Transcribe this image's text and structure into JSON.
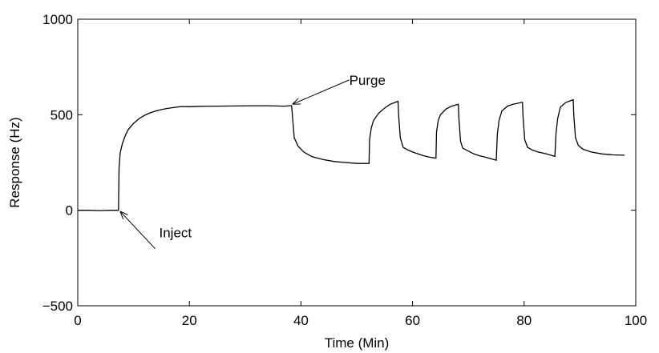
{
  "chart_data": {
    "type": "line",
    "title": "",
    "xlabel": "Time (Min)",
    "ylabel": "Response (Hz)",
    "xlim": [
      0,
      100
    ],
    "ylim": [
      -500,
      1000
    ],
    "xticks": [
      0,
      20,
      40,
      60,
      80,
      100
    ],
    "yticks": [
      -500,
      0,
      500,
      1000
    ],
    "xtick_labels": [
      "0",
      "20",
      "40",
      "60",
      "80",
      "100"
    ],
    "ytick_labels": [
      "−500",
      "0",
      "500",
      "1000"
    ],
    "grid": false,
    "legend": "none",
    "line_color": "#000000",
    "series": [
      {
        "values_x": [
          0,
          2,
          4,
          6,
          7.3,
          7.4,
          7.6,
          8,
          8.5,
          9,
          10,
          11,
          12,
          13,
          14,
          15,
          16,
          17,
          18.5,
          20,
          22,
          25,
          28,
          31,
          34,
          37,
          38.3,
          38.4,
          38.8,
          39.5,
          40.5,
          42,
          44,
          46,
          48,
          50,
          52.2,
          52.3,
          52.6,
          53,
          54,
          55,
          56,
          57.4,
          57.5,
          57.8,
          58.3,
          59,
          60,
          61,
          62,
          63,
          64.2,
          64.3,
          64.6,
          65,
          66,
          67,
          68.2,
          68.3,
          68.6,
          69,
          70,
          71,
          72,
          73,
          74,
          75,
          75.2,
          75.5,
          76,
          77,
          78,
          79.7,
          79.8,
          80.1,
          80.6,
          81.5,
          82.5,
          84,
          85.5,
          85.7,
          86,
          86.5,
          87.5,
          88.8,
          88.9,
          89.2,
          89.7,
          90.5,
          92,
          94,
          96,
          98
        ],
        "values_y": [
          0,
          0,
          -2,
          0,
          0,
          220,
          300,
          350,
          390,
          420,
          455,
          480,
          497,
          510,
          520,
          527,
          533,
          537,
          543,
          542,
          544,
          545,
          546,
          547,
          547,
          545,
          548,
          520,
          380,
          335,
          305,
          280,
          265,
          255,
          250,
          245,
          245,
          370,
          430,
          470,
          510,
          535,
          555,
          570,
          500,
          380,
          330,
          318,
          305,
          295,
          285,
          278,
          272,
          410,
          470,
          500,
          530,
          545,
          555,
          480,
          360,
          325,
          310,
          295,
          285,
          278,
          270,
          262,
          400,
          470,
          520,
          545,
          555,
          565,
          490,
          370,
          330,
          315,
          305,
          295,
          282,
          400,
          480,
          540,
          565,
          578,
          500,
          380,
          340,
          320,
          305,
          295,
          290,
          288
        ]
      }
    ],
    "annotations": [
      {
        "text": "Inject",
        "target_x": 7.4,
        "target_y": 0
      },
      {
        "text": "Purge",
        "target_x": 38.3,
        "target_y": 548
      }
    ]
  }
}
